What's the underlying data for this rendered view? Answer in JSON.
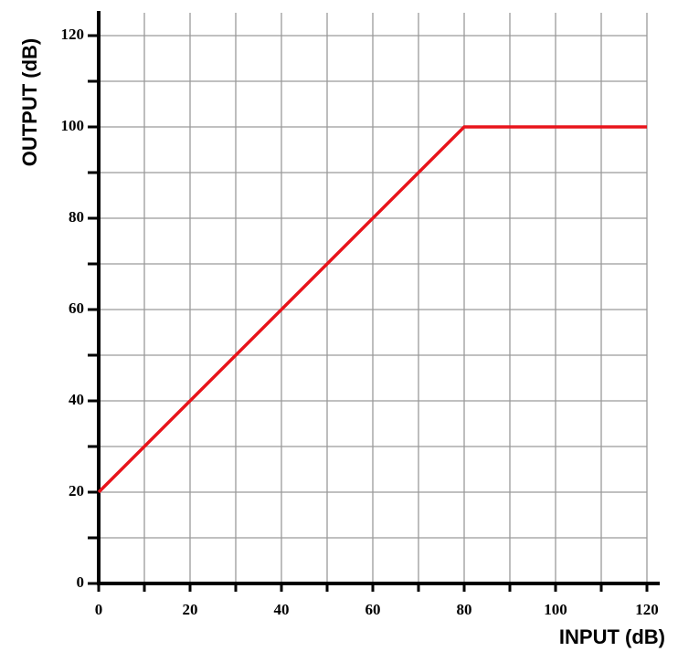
{
  "chart_data": {
    "type": "line",
    "x_label": "INPUT (dB)",
    "y_label": "OUTPUT (dB)",
    "x": [
      0,
      80,
      120
    ],
    "series": [
      {
        "color": "#e8141b",
        "values": [
          20,
          100,
          100
        ]
      }
    ],
    "xlim": [
      0,
      120
    ],
    "ylim": [
      0,
      125
    ],
    "xticks": [
      0,
      20,
      40,
      60,
      80,
      100,
      120
    ],
    "yticks": [
      0,
      20,
      40,
      60,
      80,
      100,
      120
    ],
    "xminor": [
      10,
      30,
      50,
      70,
      90,
      110
    ],
    "yminor": [
      10,
      30,
      50,
      70,
      90,
      110
    ],
    "grid": true
  }
}
